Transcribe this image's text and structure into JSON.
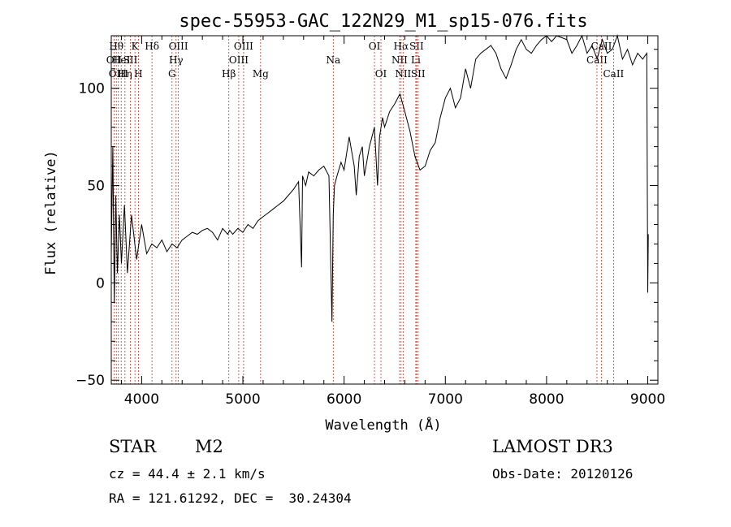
{
  "chart_data": {
    "type": "line",
    "title": "spec-55953-GAC_122N29_M1_sp15-076.fits",
    "xlabel": "Wavelength (Å)",
    "ylabel": "Flux (relative)",
    "xlim": [
      3700,
      9100
    ],
    "ylim": [
      -52,
      127
    ],
    "xticks": [
      4000,
      5000,
      6000,
      7000,
      8000,
      9000
    ],
    "yticks": [
      -50,
      0,
      50,
      100
    ],
    "grid": false,
    "series": [
      {
        "values_x": [
          3700,
          3715,
          3730,
          3745,
          3760,
          3780,
          3800,
          3830,
          3860,
          3900,
          3950,
          4000,
          4050,
          4100,
          4150,
          4200,
          4250,
          4300,
          4350,
          4400,
          4450,
          4500,
          4550,
          4600,
          4650,
          4700,
          4750,
          4800,
          4850,
          4870,
          4900,
          4950,
          5000,
          5050,
          5100,
          5150,
          5200,
          5250,
          5300,
          5350,
          5400,
          5450,
          5500,
          5550,
          5580,
          5590,
          5620,
          5650,
          5700,
          5750,
          5800,
          5850,
          5880,
          5893,
          5905,
          5930,
          5970,
          6000,
          6050,
          6100,
          6120,
          6150,
          6180,
          6200,
          6250,
          6300,
          6330,
          6350,
          6380,
          6400,
          6450,
          6500,
          6550,
          6563,
          6600,
          6650,
          6700,
          6750,
          6800,
          6850,
          6900,
          6950,
          7000,
          7050,
          7100,
          7150,
          7200,
          7250,
          7300,
          7350,
          7400,
          7450,
          7500,
          7550,
          7600,
          7650,
          7700,
          7750,
          7800,
          7850,
          7900,
          7950,
          8000,
          8050,
          8100,
          8150,
          8200,
          8250,
          8300,
          8350,
          8400,
          8450,
          8500,
          8550,
          8600,
          8650,
          8700,
          8750,
          8800,
          8850,
          8900,
          8950,
          8990,
          9000,
          9005
        ],
        "values_y": [
          15,
          70,
          -10,
          45,
          5,
          35,
          10,
          40,
          5,
          35,
          12,
          30,
          15,
          20,
          18,
          22,
          16,
          20,
          18,
          22,
          24,
          26,
          25,
          27,
          28,
          26,
          22,
          28,
          25,
          27,
          25,
          28,
          26,
          30,
          28,
          32,
          34,
          36,
          38,
          40,
          42,
          45,
          48,
          52,
          8,
          55,
          50,
          57,
          55,
          58,
          60,
          55,
          -20,
          35,
          50,
          55,
          62,
          58,
          75,
          60,
          45,
          65,
          70,
          55,
          70,
          80,
          50,
          75,
          85,
          80,
          88,
          92,
          97,
          95,
          88,
          78,
          65,
          58,
          60,
          68,
          72,
          85,
          95,
          100,
          90,
          95,
          110,
          100,
          115,
          118,
          120,
          122,
          118,
          110,
          105,
          112,
          120,
          125,
          120,
          118,
          122,
          125,
          128,
          124,
          127,
          126,
          125,
          118,
          122,
          128,
          118,
          122,
          115,
          125,
          118,
          120,
          128,
          115,
          120,
          112,
          118,
          115,
          118,
          -5,
          25
        ]
      }
    ],
    "lines": [
      {
        "x": 3727,
        "label": "OII",
        "row": 2
      },
      {
        "x": 3750,
        "label": "Hθ",
        "row": 1
      },
      {
        "x": 3770,
        "label": "OIII",
        "row": 3
      },
      {
        "x": 3798,
        "label": "HeI",
        "row": 2
      },
      {
        "x": 3835,
        "label": "Hη",
        "row": 3
      },
      {
        "x": 3889,
        "label": "SII",
        "row": 2
      },
      {
        "x": 3934,
        "label": "K",
        "row": 1
      },
      {
        "x": 3968,
        "label": "H",
        "row": 3
      },
      {
        "x": 4102,
        "label": "Hδ",
        "row": 1
      },
      {
        "x": 4300,
        "label": "G",
        "row": 3
      },
      {
        "x": 4340,
        "label": "Hγ",
        "row": 2
      },
      {
        "x": 4363,
        "label": "OIII",
        "row": 1
      },
      {
        "x": 4861,
        "label": "Hβ",
        "row": 3
      },
      {
        "x": 4959,
        "label": "OIII",
        "row": 2
      },
      {
        "x": 5007,
        "label": "OIII",
        "row": 1
      },
      {
        "x": 5175,
        "label": "Mg",
        "row": 3
      },
      {
        "x": 5893,
        "label": "Na",
        "row": 2
      },
      {
        "x": 6300,
        "label": "OI",
        "row": 1
      },
      {
        "x": 6364,
        "label": "OI",
        "row": 3
      },
      {
        "x": 6548,
        "label": "NII",
        "row": 2
      },
      {
        "x": 6563,
        "label": "Hα",
        "row": 1
      },
      {
        "x": 6583,
        "label": "NII",
        "row": 3
      },
      {
        "x": 6708,
        "label": "Li",
        "row": 2
      },
      {
        "x": 6716,
        "label": "SII",
        "row": 1
      },
      {
        "x": 6731,
        "label": "SII",
        "row": 3
      },
      {
        "x": 8498,
        "label": "CaII",
        "row": 2
      },
      {
        "x": 8542,
        "label": "CaII",
        "row": 1
      },
      {
        "x": 8662,
        "label": "CaII",
        "row": 3
      }
    ]
  },
  "info": {
    "class": "STAR",
    "subclass": "M2",
    "survey": "LAMOST DR3",
    "cz": "cz = 44.4 ± 2.1 km/s",
    "obs_date": "Obs-Date: 20120126",
    "coords": "RA = 121.61292, DEC =  30.24304"
  }
}
